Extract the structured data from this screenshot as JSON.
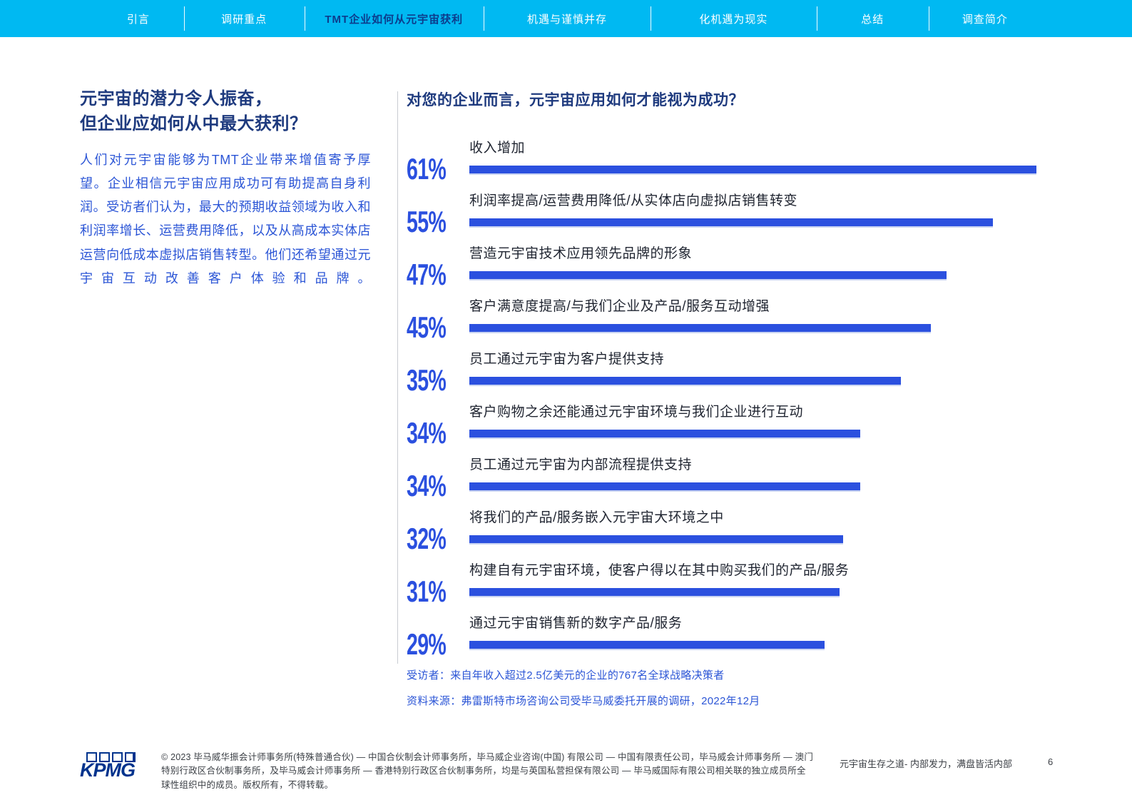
{
  "colors": {
    "nav_background": "#00B9F2",
    "nav_text": "#FFFFFF",
    "nav_active_text": "#0D3C8C",
    "heading_navy": "#1E3A7E",
    "body_blue": "#2B55D6",
    "bar_blue": "#2B50DF",
    "label_dark": "#1F2430",
    "divider_gray": "#C8CCD2",
    "footer_text": "#3C4046",
    "kpmg_blue": "#00338D"
  },
  "nav": {
    "tabs": [
      {
        "label": "引言",
        "active": false
      },
      {
        "label": "调研重点",
        "active": false
      },
      {
        "label": "TMT企业如何从元宇宙获利",
        "active": true
      },
      {
        "label": "机遇与谨慎并存",
        "active": false
      },
      {
        "label": "化机遇为现实",
        "active": false
      },
      {
        "label": "总结",
        "active": false
      },
      {
        "label": "调查简介",
        "active": false
      }
    ]
  },
  "left": {
    "heading_lines": [
      "元宇宙的潜力令人振奋，",
      "但企业应如何从中最大获利？"
    ],
    "paragraph": "人们对元宇宙能够为TMT企业带来增值寄予厚望。企业相信元宇宙应用成功可有助提高自身利润。受访者们认为，最大的预期收益领域为收入和利润率增长、运营费用降低，以及从高成本实体店运营向低成本虚拟店销售转型。他们还希望通过元宇宙互动改善客户体验和品牌。"
  },
  "chart_data": {
    "type": "bar",
    "orientation": "horizontal",
    "title": "对您的企业而言，元宇宙应用如何才能视为成功？",
    "unit": "%",
    "categories": [
      "收入增加",
      "利润率提高/运营费用降低/从实体店向虚拟店销售转变",
      "营造元宇宙技术应用领先品牌的形象",
      "客户满意度提高/与我们企业及产品/服务互动增强",
      "员工通过元宇宙为客户提供支持",
      "客户购物之余还能通过元宇宙环境与我们企业进行互动",
      "员工通过元宇宙为内部流程提供支持",
      "将我们的产品/服务嵌入元宇宙大环境之中",
      "构建自有元宇宙环境，使客户得以在其中购买我们的产品/服务",
      "通过元宇宙销售新的数字产品/服务"
    ],
    "values": [
      61,
      55,
      47,
      45,
      35,
      34,
      34,
      32,
      31,
      29
    ],
    "bar_fractions": [
      0.944,
      0.872,
      0.795,
      0.768,
      0.719,
      0.651,
      0.651,
      0.622,
      0.616,
      0.591
    ],
    "grid": false,
    "legend": "none",
    "respondents_note": "受访者：来自年收入超过2.5亿美元的企业的767名全球战略决策者",
    "source_note": "资料来源：弗雷斯特市场咨询公司受毕马威委托开展的调研，2022年12月"
  },
  "footer": {
    "logo_text": "KPMG",
    "copyright": "© 2023 毕马威华振会计师事务所(特殊普通合伙) — 中国合伙制会计师事务所，毕马威企业咨询(中国) 有限公司 — 中国有限责任公司，毕马威会计师事务所 — 澳门特别行政区合伙制事务所，及毕马威会计师事务所 — 香港特别行政区合伙制事务所，均是与英国私营担保有限公司 — 毕马威国际有限公司相关联的独立成员所全球性组织中的成员。版权所有，不得转载。",
    "doc_title": "元宇宙生存之道- 内部发力，满盘皆活内部",
    "page_number": "6"
  }
}
